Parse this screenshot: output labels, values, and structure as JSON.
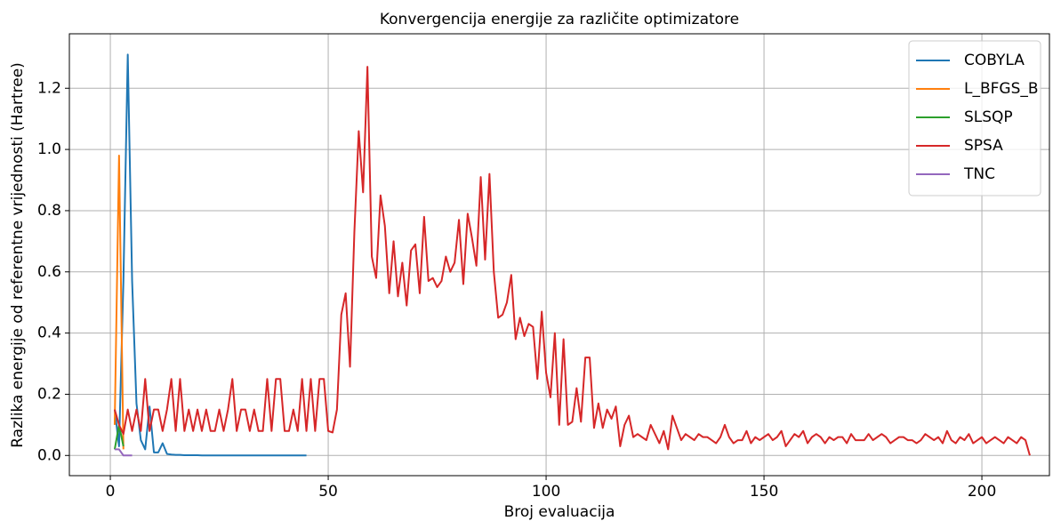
{
  "chart_data": {
    "type": "line",
    "title": "Konvergencija energije za različite optimizatore",
    "xlabel": "Broj evaluacija",
    "ylabel": "Razlika energije od referentne vrijednosti (Hartree)",
    "xlim": [
      -9.4,
      215.5
    ],
    "ylim": [
      -0.066,
      1.378
    ],
    "xticks": [
      0,
      50,
      100,
      150,
      200
    ],
    "yticks": [
      {
        "value": 0,
        "label": "0.0"
      },
      0.2,
      0.4,
      0.6,
      0.8,
      {
        "value": 1,
        "label": "1.0"
      },
      1.2
    ],
    "grid": true,
    "legend": "upper right",
    "series": [
      {
        "name": "COBYLA",
        "color": "#1f77b4",
        "x": [
          1,
          2,
          3,
          4,
          5,
          6,
          7,
          8,
          9,
          10,
          11,
          12,
          13,
          14,
          15,
          16,
          17,
          18,
          19,
          20,
          21,
          22,
          23,
          24,
          25,
          26,
          27,
          28,
          29,
          30,
          31,
          32,
          33,
          34,
          35,
          36,
          37,
          38,
          39,
          40,
          41,
          42,
          43,
          44,
          45
        ],
        "values": [
          0.15,
          0.03,
          0.57,
          1.31,
          0.57,
          0.17,
          0.05,
          0.02,
          0.16,
          0.01,
          0.01,
          0.04,
          0.005,
          0.003,
          0.002,
          0.002,
          0.001,
          0.001,
          0.001,
          0.001,
          0,
          0,
          0,
          0,
          0,
          0,
          0,
          0,
          0,
          0,
          0,
          0,
          0,
          0,
          0,
          0,
          0,
          0,
          0,
          0,
          0,
          0,
          0,
          0,
          0
        ]
      },
      {
        "name": "L_BFGS_B",
        "color": "#ff7f0e",
        "x": [
          1,
          2,
          3
        ],
        "values": [
          0.1,
          0.98,
          0.02
        ]
      },
      {
        "name": "SLSQP",
        "color": "#2ca02c",
        "x": [
          1,
          2,
          3
        ],
        "values": [
          0.02,
          0.1,
          0.03
        ]
      },
      {
        "name": "SPSA",
        "color": "#d62728",
        "x": [
          1,
          2,
          3,
          4,
          5,
          6,
          7,
          8,
          9,
          10,
          11,
          12,
          13,
          14,
          15,
          16,
          17,
          18,
          19,
          20,
          21,
          22,
          23,
          24,
          25,
          26,
          27,
          28,
          29,
          30,
          31,
          32,
          33,
          34,
          35,
          36,
          37,
          38,
          39,
          40,
          41,
          42,
          43,
          44,
          45,
          46,
          47,
          48,
          49,
          50,
          51,
          52,
          53,
          54,
          55,
          56,
          57,
          58,
          59,
          60,
          61,
          62,
          63,
          64,
          65,
          66,
          67,
          68,
          69,
          70,
          71,
          72,
          73,
          74,
          75,
          76,
          77,
          78,
          79,
          80,
          81,
          82,
          83,
          84,
          85,
          86,
          87,
          88,
          89,
          90,
          91,
          92,
          93,
          94,
          95,
          96,
          97,
          98,
          99,
          100,
          101,
          102,
          103,
          104,
          105,
          106,
          107,
          108,
          109,
          110,
          111,
          112,
          113,
          114,
          115,
          116,
          117,
          118,
          119,
          120,
          121,
          122,
          123,
          124,
          125,
          126,
          127,
          128,
          129,
          130,
          131,
          132,
          133,
          134,
          135,
          136,
          137,
          138,
          139,
          140,
          141,
          142,
          143,
          144,
          145,
          146,
          147,
          148,
          149,
          150,
          151,
          152,
          153,
          154,
          155,
          156,
          157,
          158,
          159,
          160,
          161,
          162,
          163,
          164,
          165,
          166,
          167,
          168,
          169,
          170,
          171,
          172,
          173,
          174,
          175,
          176,
          177,
          178,
          179,
          180,
          181,
          182,
          183,
          184,
          185,
          186,
          187,
          188,
          189,
          190,
          191,
          192,
          193,
          194,
          195,
          196,
          197,
          198,
          199,
          200,
          201,
          202,
          203,
          204,
          205,
          206,
          207,
          208,
          209,
          210,
          211
        ],
        "values": [
          0.15,
          0.1,
          0.07,
          0.15,
          0.08,
          0.15,
          0.08,
          0.25,
          0.08,
          0.15,
          0.15,
          0.08,
          0.15,
          0.25,
          0.08,
          0.25,
          0.08,
          0.15,
          0.08,
          0.15,
          0.08,
          0.15,
          0.08,
          0.08,
          0.15,
          0.08,
          0.15,
          0.25,
          0.08,
          0.15,
          0.15,
          0.08,
          0.15,
          0.08,
          0.08,
          0.25,
          0.08,
          0.25,
          0.25,
          0.08,
          0.08,
          0.15,
          0.08,
          0.25,
          0.08,
          0.25,
          0.08,
          0.25,
          0.25,
          0.08,
          0.075,
          0.15,
          0.46,
          0.53,
          0.29,
          0.73,
          1.06,
          0.86,
          1.27,
          0.65,
          0.58,
          0.85,
          0.75,
          0.53,
          0.7,
          0.52,
          0.63,
          0.49,
          0.67,
          0.69,
          0.53,
          0.78,
          0.57,
          0.58,
          0.55,
          0.57,
          0.65,
          0.6,
          0.63,
          0.77,
          0.56,
          0.79,
          0.71,
          0.62,
          0.91,
          0.64,
          0.92,
          0.6,
          0.45,
          0.46,
          0.5,
          0.59,
          0.38,
          0.45,
          0.39,
          0.43,
          0.42,
          0.25,
          0.47,
          0.27,
          0.19,
          0.4,
          0.1,
          0.38,
          0.1,
          0.11,
          0.22,
          0.11,
          0.32,
          0.32,
          0.09,
          0.17,
          0.09,
          0.15,
          0.12,
          0.16,
          0.03,
          0.1,
          0.13,
          0.06,
          0.07,
          0.06,
          0.05,
          0.1,
          0.07,
          0.04,
          0.08,
          0.02,
          0.13,
          0.09,
          0.05,
          0.07,
          0.06,
          0.05,
          0.07,
          0.06,
          0.06,
          0.05,
          0.04,
          0.06,
          0.1,
          0.06,
          0.04,
          0.05,
          0.05,
          0.08,
          0.04,
          0.06,
          0.05,
          0.06,
          0.07,
          0.05,
          0.06,
          0.08,
          0.03,
          0.05,
          0.07,
          0.06,
          0.08,
          0.04,
          0.06,
          0.07,
          0.06,
          0.04,
          0.06,
          0.05,
          0.06,
          0.06,
          0.04,
          0.07,
          0.05,
          0.05,
          0.05,
          0.07,
          0.05,
          0.06,
          0.07,
          0.06,
          0.04,
          0.05,
          0.06,
          0.06,
          0.05,
          0.05,
          0.04,
          0.05,
          0.07,
          0.06,
          0.05,
          0.06,
          0.04,
          0.08,
          0.05,
          0.04,
          0.06,
          0.05,
          0.07,
          0.04,
          0.05,
          0.06,
          0.04,
          0.05,
          0.06,
          0.05,
          0.04,
          0.06,
          0.05,
          0.04,
          0.06,
          0.05,
          0.0
        ]
      },
      {
        "name": "TNC",
        "color": "#9467bd",
        "x": [
          1,
          2,
          3,
          4,
          5
        ],
        "values": [
          0.02,
          0.02,
          0,
          0,
          0
        ]
      }
    ]
  }
}
